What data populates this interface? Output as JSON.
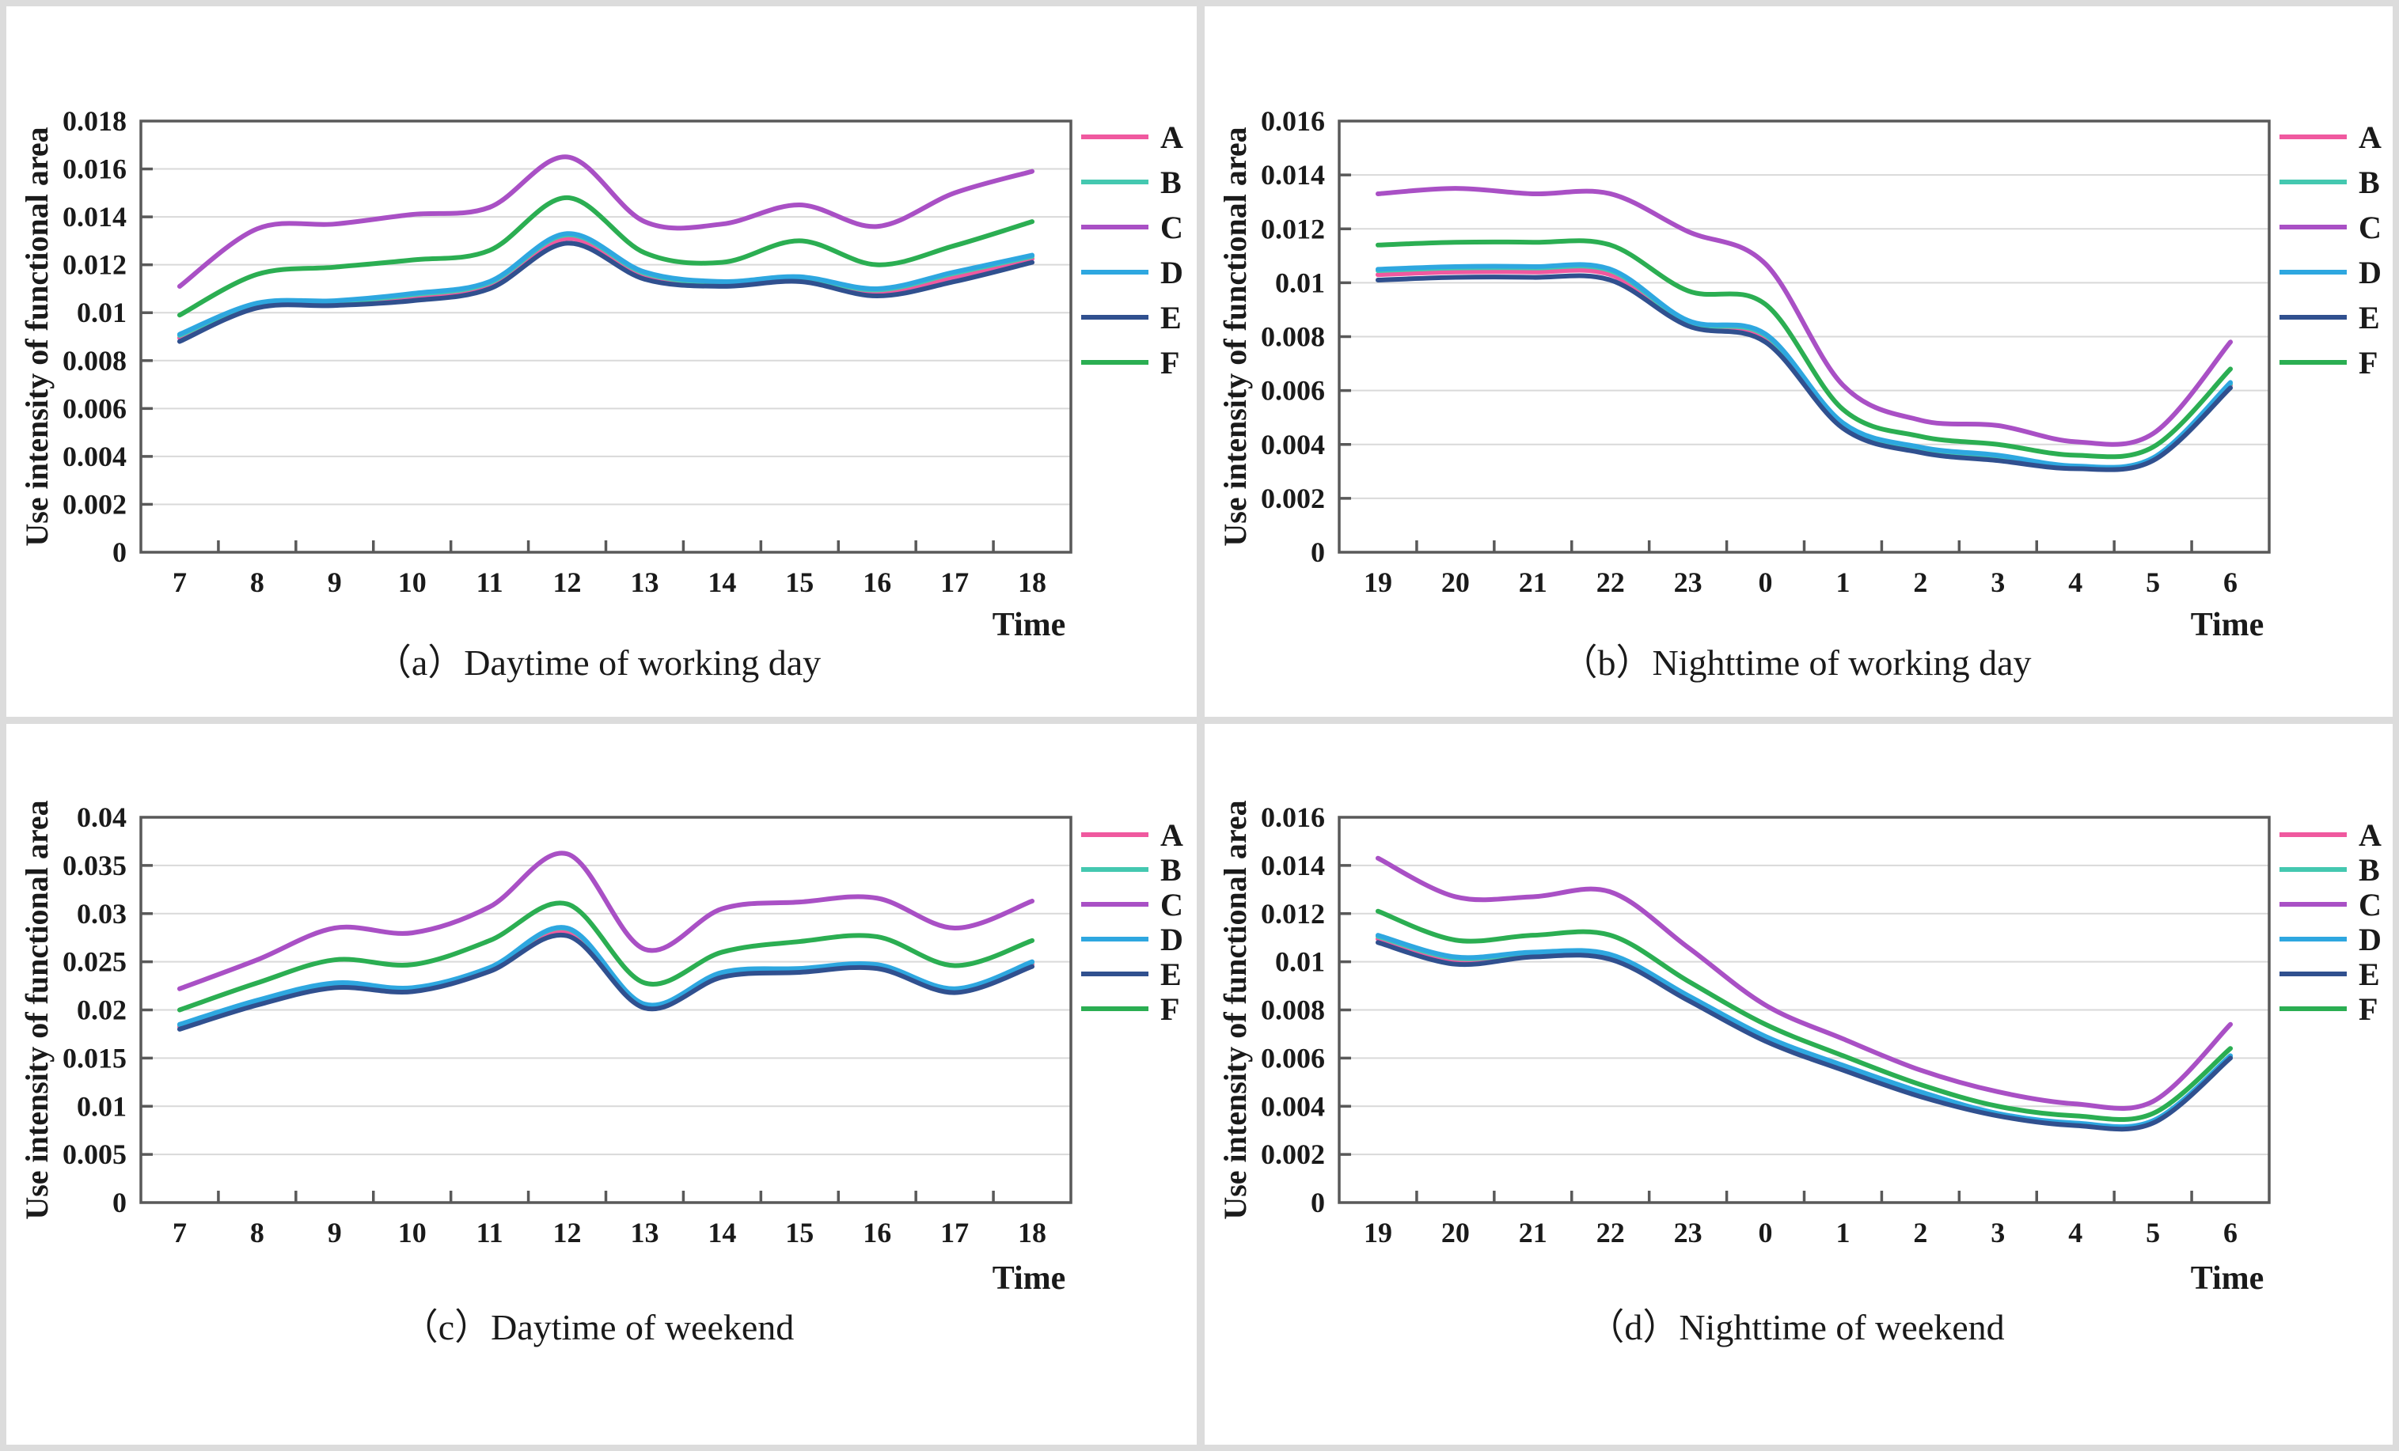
{
  "page": {
    "background": "#ffffff",
    "separator_color": "#dcdcdc"
  },
  "colors": {
    "A": "#f0599f",
    "B": "#44c8b0",
    "C": "#a950c5",
    "D": "#2ea7e0",
    "E": "#30508f",
    "F": "#2bae52",
    "grid": "#d9d9d9",
    "axis": "#595959",
    "text": "#1a1a1a"
  },
  "legend": {
    "items": [
      "A",
      "B",
      "C",
      "D",
      "E",
      "F"
    ],
    "position": "right"
  },
  "chart_data": [
    {
      "type": "line",
      "title": "（a）Daytime of working day",
      "xlabel": "Time",
      "ylabel": "Use intensity of functional area",
      "categories": [
        "7",
        "8",
        "9",
        "10",
        "11",
        "12",
        "13",
        "14",
        "15",
        "16",
        "17",
        "18"
      ],
      "y_ticks": [
        "0",
        "0.002",
        "0.004",
        "0.006",
        "0.008",
        "0.01",
        "0.012",
        "0.014",
        "0.016",
        "0.018"
      ],
      "ymax": 0.018,
      "grid": "horizontal",
      "legend_entries": [
        "A",
        "B",
        "C",
        "D",
        "E",
        "F"
      ],
      "series": [
        {
          "name": "A",
          "values": [
            0.00895,
            0.0103,
            0.0104,
            0.01065,
            0.01115,
            0.0131,
            0.01155,
            0.0112,
            0.0114,
            0.01085,
            0.0115,
            0.01225
          ]
        },
        {
          "name": "B",
          "values": [
            0.00905,
            0.01035,
            0.01045,
            0.01075,
            0.01125,
            0.01325,
            0.01165,
            0.01125,
            0.01145,
            0.01095,
            0.01165,
            0.01235
          ]
        },
        {
          "name": "C",
          "values": [
            0.0111,
            0.0135,
            0.0137,
            0.0141,
            0.0144,
            0.0165,
            0.0138,
            0.0137,
            0.0145,
            0.0136,
            0.015,
            0.0159
          ]
        },
        {
          "name": "D",
          "values": [
            0.0091,
            0.0104,
            0.0105,
            0.0108,
            0.0113,
            0.0133,
            0.0117,
            0.0113,
            0.0115,
            0.011,
            0.0117,
            0.0124
          ]
        },
        {
          "name": "E",
          "values": [
            0.0088,
            0.0102,
            0.0103,
            0.0105,
            0.011,
            0.0129,
            0.0114,
            0.0111,
            0.0113,
            0.0107,
            0.0113,
            0.0121
          ]
        },
        {
          "name": "F",
          "values": [
            0.0099,
            0.0116,
            0.0119,
            0.0122,
            0.0126,
            0.0148,
            0.0125,
            0.0121,
            0.013,
            0.012,
            0.0128,
            0.0138
          ]
        }
      ]
    },
    {
      "type": "line",
      "title": "（b）Nighttime of working day",
      "xlabel": "Time",
      "ylabel": "Use intensity of functional area",
      "categories": [
        "19",
        "20",
        "21",
        "22",
        "23",
        "0",
        "1",
        "2",
        "3",
        "4",
        "5",
        "6"
      ],
      "y_ticks": [
        "0",
        "0.002",
        "0.004",
        "0.006",
        "0.008",
        "0.01",
        "0.012",
        "0.014",
        "0.016"
      ],
      "ymax": 0.016,
      "grid": "horizontal",
      "legend_entries": [
        "A",
        "B",
        "C",
        "D",
        "E",
        "F"
      ],
      "series": [
        {
          "name": "A",
          "values": [
            0.0103,
            0.0104,
            0.0104,
            0.0103,
            0.0085,
            0.00795,
            0.0047,
            0.0038,
            0.0035,
            0.00315,
            0.00345,
            0.0062
          ]
        },
        {
          "name": "B",
          "values": [
            0.01045,
            0.01055,
            0.01055,
            0.01045,
            0.00855,
            0.00805,
            0.00475,
            0.00385,
            0.00355,
            0.00315,
            0.00345,
            0.00625
          ]
        },
        {
          "name": "C",
          "values": [
            0.0133,
            0.0135,
            0.0133,
            0.0133,
            0.0119,
            0.0107,
            0.0062,
            0.0049,
            0.0047,
            0.0041,
            0.0044,
            0.0078
          ]
        },
        {
          "name": "D",
          "values": [
            0.0105,
            0.0106,
            0.0106,
            0.0105,
            0.0086,
            0.0081,
            0.0048,
            0.0039,
            0.0036,
            0.0032,
            0.0035,
            0.0063
          ]
        },
        {
          "name": "E",
          "values": [
            0.0101,
            0.0102,
            0.0102,
            0.0101,
            0.0084,
            0.0078,
            0.0046,
            0.0037,
            0.0034,
            0.0031,
            0.0034,
            0.0061
          ]
        },
        {
          "name": "F",
          "values": [
            0.0114,
            0.0115,
            0.0115,
            0.0114,
            0.0097,
            0.0092,
            0.0053,
            0.0043,
            0.004,
            0.0036,
            0.0039,
            0.0068
          ]
        }
      ]
    },
    {
      "type": "line",
      "title": "（c）Daytime of weekend",
      "xlabel": "Time",
      "ylabel": "Use intensity of functional area",
      "categories": [
        "7",
        "8",
        "9",
        "10",
        "11",
        "12",
        "13",
        "14",
        "15",
        "16",
        "17",
        "18"
      ],
      "y_ticks": [
        "0",
        "0.005",
        "0.01",
        "0.015",
        "0.02",
        "0.025",
        "0.03",
        "0.035",
        "0.04"
      ],
      "ymax": 0.04,
      "grid": "horizontal",
      "legend_entries": [
        "A",
        "B",
        "C",
        "D",
        "E",
        "F"
      ],
      "series": [
        {
          "name": "A",
          "values": [
            0.01825,
            0.02075,
            0.02255,
            0.0221,
            0.0242,
            0.0281,
            0.0204,
            0.02365,
            0.0241,
            0.0245,
            0.022,
            0.02475
          ]
        },
        {
          "name": "B",
          "values": [
            0.01845,
            0.02095,
            0.02275,
            0.02225,
            0.02435,
            0.02845,
            0.02055,
            0.02385,
            0.02425,
            0.02465,
            0.02215,
            0.02495
          ]
        },
        {
          "name": "C",
          "values": [
            0.0222,
            0.0252,
            0.0285,
            0.028,
            0.0307,
            0.0362,
            0.0263,
            0.0305,
            0.0312,
            0.0316,
            0.0285,
            0.0313
          ]
        },
        {
          "name": "D",
          "values": [
            0.0185,
            0.021,
            0.0228,
            0.0223,
            0.0244,
            0.0285,
            0.0206,
            0.0239,
            0.0243,
            0.0247,
            0.0222,
            0.025
          ]
        },
        {
          "name": "E",
          "values": [
            0.018,
            0.0205,
            0.0223,
            0.0219,
            0.024,
            0.0277,
            0.0202,
            0.0234,
            0.0239,
            0.0243,
            0.0218,
            0.0245
          ]
        },
        {
          "name": "F",
          "values": [
            0.02,
            0.0228,
            0.0252,
            0.0247,
            0.0272,
            0.031,
            0.0228,
            0.026,
            0.0271,
            0.0276,
            0.0246,
            0.0272
          ]
        }
      ]
    },
    {
      "type": "line",
      "title": "（d）Nighttime of weekend",
      "xlabel": "Time",
      "ylabel": "Use intensity of functional area",
      "categories": [
        "19",
        "20",
        "21",
        "22",
        "23",
        "0",
        "1",
        "2",
        "3",
        "4",
        "5",
        "6"
      ],
      "y_ticks": [
        "0",
        "0.002",
        "0.004",
        "0.006",
        "0.008",
        "0.01",
        "0.012",
        "0.014",
        "0.016"
      ],
      "ymax": 0.016,
      "grid": "horizontal",
      "legend_entries": [
        "A",
        "B",
        "C",
        "D",
        "E",
        "F"
      ],
      "series": [
        {
          "name": "A",
          "values": [
            0.01095,
            0.01005,
            0.0103,
            0.0102,
            0.0085,
            0.0068,
            0.0056,
            0.0045,
            0.00365,
            0.00325,
            0.00335,
            0.00605
          ]
        },
        {
          "name": "B",
          "values": [
            0.01105,
            0.01015,
            0.01035,
            0.01025,
            0.00855,
            0.00685,
            0.00565,
            0.00455,
            0.00365,
            0.00325,
            0.00335,
            0.00605
          ]
        },
        {
          "name": "C",
          "values": [
            0.0143,
            0.0127,
            0.0127,
            0.0129,
            0.0106,
            0.0082,
            0.0068,
            0.0055,
            0.0046,
            0.0041,
            0.0042,
            0.0074
          ]
        },
        {
          "name": "D",
          "values": [
            0.0111,
            0.0102,
            0.0104,
            0.0103,
            0.0086,
            0.0069,
            0.0057,
            0.0046,
            0.0037,
            0.0033,
            0.0034,
            0.0061
          ]
        },
        {
          "name": "E",
          "values": [
            0.0108,
            0.0099,
            0.0102,
            0.0101,
            0.0084,
            0.0067,
            0.0055,
            0.0044,
            0.0036,
            0.0032,
            0.0033,
            0.006
          ]
        },
        {
          "name": "F",
          "values": [
            0.0121,
            0.0109,
            0.0111,
            0.0111,
            0.0092,
            0.0074,
            0.0061,
            0.0049,
            0.004,
            0.0036,
            0.0037,
            0.0064
          ]
        }
      ]
    }
  ]
}
